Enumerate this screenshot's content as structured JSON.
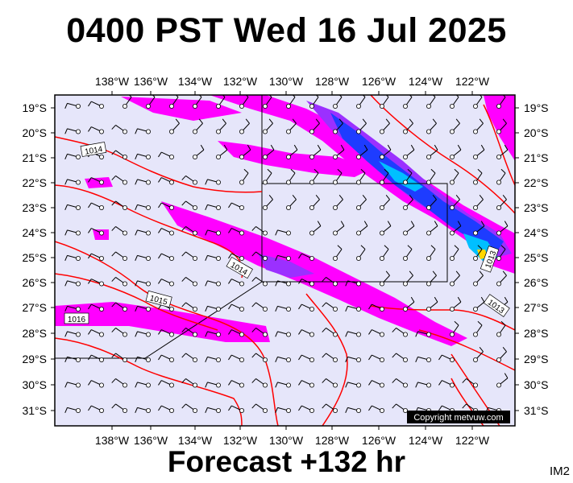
{
  "title": "0400 PST Wed 16 Jul 2025",
  "footer": "Forecast +132 hr",
  "corner_label": "IM2",
  "copyright": "Copyright metvuw.com",
  "lon_labels": [
    "138°W",
    "136°W",
    "134°W",
    "132°W",
    "130°W",
    "128°W",
    "126°W",
    "124°W",
    "122°W"
  ],
  "lat_labels": [
    "19°S",
    "20°S",
    "21°S",
    "22°S",
    "23°S",
    "24°S",
    "25°S",
    "26°S",
    "27°S",
    "28°S",
    "29°S",
    "30°S",
    "31°S"
  ],
  "isobar_labels": [
    "1014",
    "1014",
    "1015",
    "1016",
    "1013",
    "1013"
  ],
  "colors": {
    "background": "#e6e6fa",
    "isobar": "#ff0000",
    "rain_light": "#ff00ff",
    "rain_medium": "#9b30ff",
    "rain_heavy": "#1e3cff",
    "rain_very_heavy": "#00bfff",
    "rain_peak": "#ffd700"
  }
}
